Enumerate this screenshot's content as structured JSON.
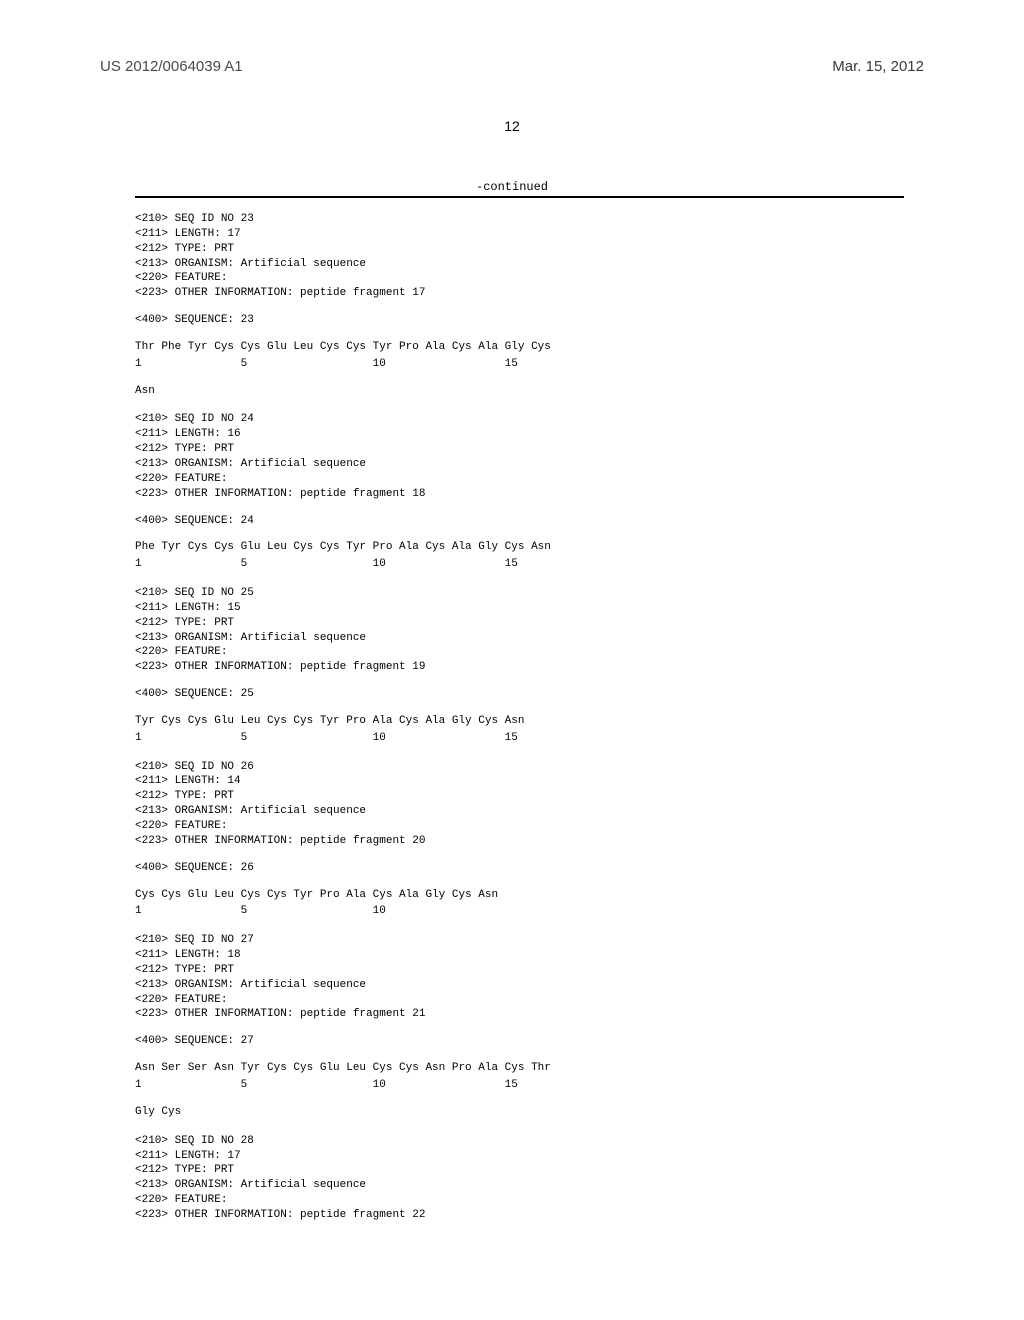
{
  "header": {
    "pub_number": "US 2012/0064039 A1",
    "pub_date": "Mar. 15, 2012",
    "page_number": "12",
    "continued": "-continued"
  },
  "sequences": [
    {
      "id": "23",
      "headers": [
        "<210> SEQ ID NO 23",
        "<211> LENGTH: 17",
        "<212> TYPE: PRT",
        "<213> ORGANISM: Artificial sequence",
        "<220> FEATURE:",
        "<223> OTHER INFORMATION: peptide fragment 17"
      ],
      "seq_title": "<400> SEQUENCE: 23",
      "data_line": "Thr Phe Tyr Cys Cys Glu Leu Cys Cys Tyr Pro Ala Cys Ala Gly Cys",
      "number_line": "1               5                   10                  15",
      "extra": "Asn"
    },
    {
      "id": "24",
      "headers": [
        "<210> SEQ ID NO 24",
        "<211> LENGTH: 16",
        "<212> TYPE: PRT",
        "<213> ORGANISM: Artificial sequence",
        "<220> FEATURE:",
        "<223> OTHER INFORMATION: peptide fragment 18"
      ],
      "seq_title": "<400> SEQUENCE: 24",
      "data_line": "Phe Tyr Cys Cys Glu Leu Cys Cys Tyr Pro Ala Cys Ala Gly Cys Asn",
      "number_line": "1               5                   10                  15",
      "extra": ""
    },
    {
      "id": "25",
      "headers": [
        "<210> SEQ ID NO 25",
        "<211> LENGTH: 15",
        "<212> TYPE: PRT",
        "<213> ORGANISM: Artificial sequence",
        "<220> FEATURE:",
        "<223> OTHER INFORMATION: peptide fragment 19"
      ],
      "seq_title": "<400> SEQUENCE: 25",
      "data_line": "Tyr Cys Cys Glu Leu Cys Cys Tyr Pro Ala Cys Ala Gly Cys Asn",
      "number_line": "1               5                   10                  15",
      "extra": ""
    },
    {
      "id": "26",
      "headers": [
        "<210> SEQ ID NO 26",
        "<211> LENGTH: 14",
        "<212> TYPE: PRT",
        "<213> ORGANISM: Artificial sequence",
        "<220> FEATURE:",
        "<223> OTHER INFORMATION: peptide fragment 20"
      ],
      "seq_title": "<400> SEQUENCE: 26",
      "data_line": "Cys Cys Glu Leu Cys Cys Tyr Pro Ala Cys Ala Gly Cys Asn",
      "number_line": "1               5                   10",
      "extra": ""
    },
    {
      "id": "27",
      "headers": [
        "<210> SEQ ID NO 27",
        "<211> LENGTH: 18",
        "<212> TYPE: PRT",
        "<213> ORGANISM: Artificial sequence",
        "<220> FEATURE:",
        "<223> OTHER INFORMATION: peptide fragment 21"
      ],
      "seq_title": "<400> SEQUENCE: 27",
      "data_line": "Asn Ser Ser Asn Tyr Cys Cys Glu Leu Cys Cys Asn Pro Ala Cys Thr",
      "number_line": "1               5                   10                  15",
      "extra": "Gly Cys"
    },
    {
      "id": "28",
      "headers": [
        "<210> SEQ ID NO 28",
        "<211> LENGTH: 17",
        "<212> TYPE: PRT",
        "<213> ORGANISM: Artificial sequence",
        "<220> FEATURE:",
        "<223> OTHER INFORMATION: peptide fragment 22"
      ],
      "seq_title": "",
      "data_line": "",
      "number_line": "",
      "extra": ""
    }
  ]
}
